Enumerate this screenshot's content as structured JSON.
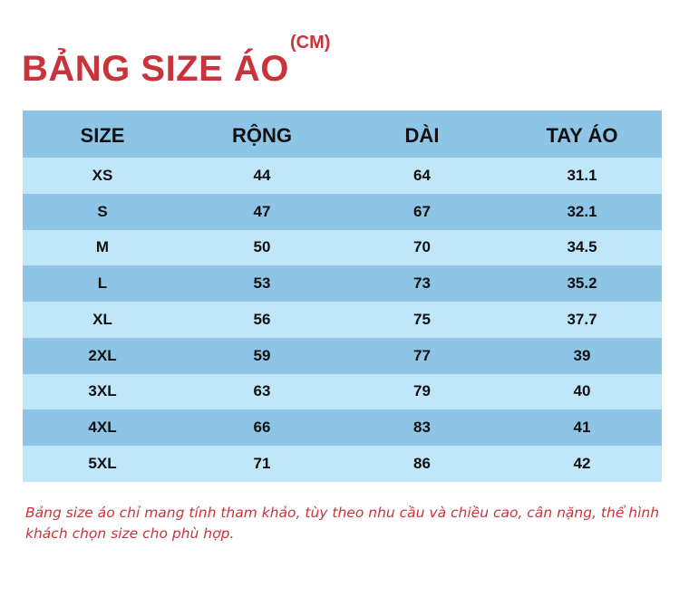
{
  "header": {
    "title": "BẢNG SIZE ÁO",
    "unit": "(CM)"
  },
  "table": {
    "columns": [
      "SIZE",
      "RỘNG",
      "DÀI",
      "TAY ÁO"
    ],
    "rows": [
      [
        "XS",
        "44",
        "64",
        "31.1"
      ],
      [
        "S",
        "47",
        "67",
        "32.1"
      ],
      [
        "M",
        "50",
        "70",
        "34.5"
      ],
      [
        "L",
        "53",
        "73",
        "35.2"
      ],
      [
        "XL",
        "56",
        "75",
        "37.7"
      ],
      [
        "2XL",
        "59",
        "77",
        "39"
      ],
      [
        "3XL",
        "63",
        "79",
        "40"
      ],
      [
        "4XL",
        "66",
        "83",
        "41"
      ],
      [
        "5XL",
        "71",
        "86",
        "42"
      ]
    ]
  },
  "note": "Bảng size áo chỉ mang tính tham khảo, tùy theo nhu cầu và chiều cao, cân nặng, thể hình khách chọn size cho phù hợp.",
  "colors": {
    "title": "#c8343b",
    "header_row": "#8ec4e6",
    "light_row": "#c0e6fa",
    "dark_row": "#8ec4e6"
  }
}
